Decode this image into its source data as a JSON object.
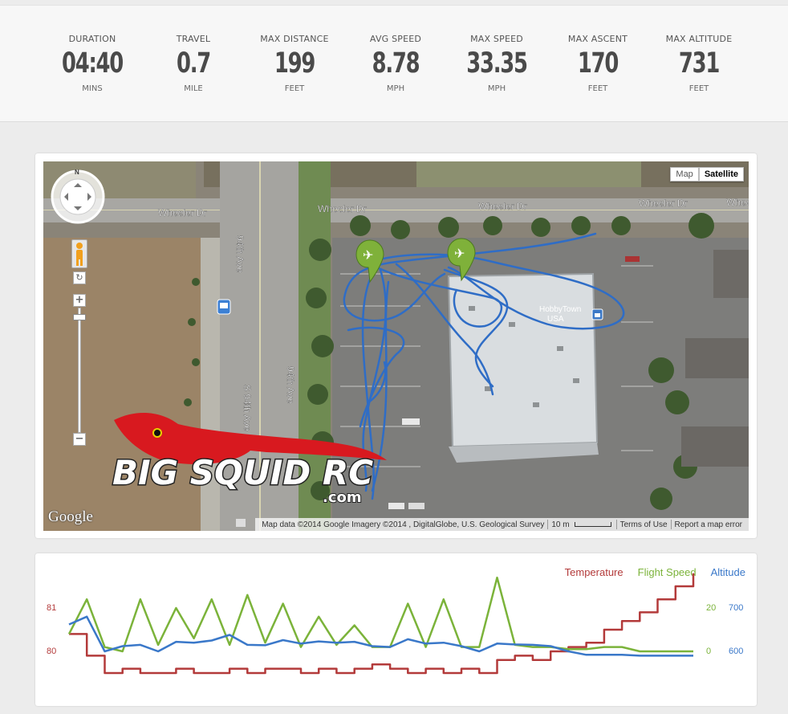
{
  "stats": [
    {
      "label": "DURATION",
      "value": "04:40",
      "unit": "MINS"
    },
    {
      "label": "TRAVEL",
      "value": "0.7",
      "unit": "MILE"
    },
    {
      "label": "MAX DISTANCE",
      "value": "199",
      "unit": "FEET"
    },
    {
      "label": "AVG SPEED",
      "value": "8.78",
      "unit": "MPH"
    },
    {
      "label": "MAX SPEED",
      "value": "33.35",
      "unit": "MPH"
    },
    {
      "label": "MAX ASCENT",
      "value": "170",
      "unit": "FEET"
    },
    {
      "label": "MAX ALTITUDE",
      "value": "731",
      "unit": "FEET"
    }
  ],
  "map": {
    "type_buttons": {
      "map": "Map",
      "satellite": "Satellite"
    },
    "active_type": "Satellite",
    "street_labels": {
      "wheeler_1": "Wheeler Dr",
      "wheeler_2": "Wheeler Dr",
      "wheeler_3": "Wheeler Dr",
      "wheeler_4": "Wheeler Dr",
      "wheeler_5": "Whee",
      "ave_1": "94th Ave",
      "ave_2": "94th Ave",
      "ave_3": "S 94th Ave"
    },
    "business_label_1": "HobbyTown",
    "business_label_2": "USA",
    "google_logo": "Google",
    "attribution": "Map data ©2014 Google Imagery ©2014 , DigitalGlobe, U.S. Geological Survey",
    "scale_label": "10 m",
    "terms": "Terms of Use",
    "report": "Report a map error",
    "compass_letter": "N",
    "zoom_in": "+",
    "zoom_out": "−",
    "rotate": "↻",
    "watermark_main": "BIG SQUID RC",
    "watermark_sub": ".com",
    "colors": {
      "flight_path": "#2f6dc6",
      "marker": "#7fb13a"
    }
  },
  "chart_data": {
    "type": "line",
    "legend": [
      {
        "name": "Temperature",
        "color": "#b33a3a"
      },
      {
        "name": "Flight Speed",
        "color": "#7bb33a"
      },
      {
        "name": "Altitude",
        "color": "#3a78c9"
      }
    ],
    "axes": {
      "temperature": {
        "side": "left",
        "ticks": [
          "81",
          "80"
        ],
        "color": "#b33a3a"
      },
      "flight_speed": {
        "side": "right",
        "ticks": [
          "20",
          "0"
        ],
        "color": "#7bb33a"
      },
      "altitude": {
        "side": "right",
        "ticks": [
          "700",
          "600"
        ],
        "color": "#3a78c9"
      }
    },
    "x": [
      0,
      8,
      16,
      24,
      32,
      40,
      48,
      56,
      64,
      72,
      80,
      88,
      96,
      104,
      112,
      120,
      128,
      136,
      144,
      152,
      160,
      168,
      176,
      184,
      192,
      200,
      208,
      216,
      224,
      232,
      240,
      248,
      256,
      264,
      272,
      280
    ],
    "series": [
      {
        "name": "Temperature",
        "values": [
          80.4,
          79.9,
          79.5,
          79.6,
          79.5,
          79.5,
          79.6,
          79.5,
          79.5,
          79.6,
          79.5,
          79.6,
          79.6,
          79.5,
          79.6,
          79.5,
          79.6,
          79.7,
          79.6,
          79.5,
          79.6,
          79.5,
          79.6,
          79.5,
          79.8,
          79.9,
          79.8,
          80.0,
          80.1,
          80.2,
          80.5,
          80.7,
          80.9,
          81.2,
          81.5,
          81.8
        ]
      },
      {
        "name": "Flight Speed",
        "values": [
          8,
          24,
          2,
          0,
          24,
          3,
          20,
          6,
          24,
          3,
          26,
          4,
          22,
          2,
          16,
          3,
          12,
          2,
          2,
          22,
          2,
          24,
          2,
          2,
          34,
          3,
          2,
          2,
          1,
          1,
          2,
          2,
          0,
          0,
          0,
          0
        ]
      },
      {
        "name": "Altitude",
        "values": [
          662,
          680,
          600,
          612,
          615,
          600,
          622,
          620,
          625,
          638,
          615,
          614,
          626,
          618,
          623,
          620,
          622,
          612,
          610,
          628,
          618,
          620,
          612,
          600,
          618,
          616,
          615,
          612,
          600,
          592,
          592,
          592,
          590,
          590,
          590,
          590
        ]
      }
    ]
  }
}
